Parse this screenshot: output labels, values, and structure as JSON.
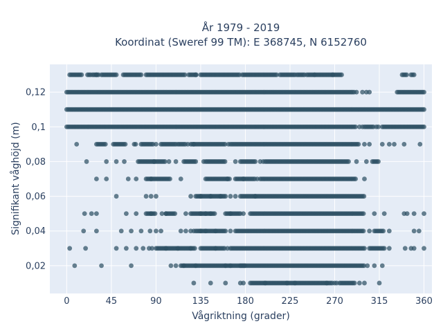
{
  "chart_data": {
    "type": "scatter",
    "title": "År 1979 - 2019",
    "subtitle": "Koordinat (Sweref 99 TM): E 368745, N 6152760",
    "xlabel": "Vågriktning (grader)",
    "ylabel": "Signifikant våghöjd (m)",
    "xlim": [
      -17,
      368
    ],
    "ylim": [
      0.004,
      0.136
    ],
    "x_ticks": [
      0,
      45,
      90,
      135,
      180,
      225,
      270,
      315,
      360
    ],
    "x_tick_labels": [
      "0",
      "45",
      "90",
      "135",
      "180",
      "225",
      "270",
      "315",
      "360"
    ],
    "y_ticks": [
      0.02,
      0.04,
      0.06,
      0.08,
      0.1,
      0.12
    ],
    "y_tick_labels": [
      "0,02",
      "0,04",
      "0,06",
      "0,08",
      "0,1",
      "0,12"
    ],
    "grid": true,
    "legend": false,
    "marker_color": "#2e5064",
    "plot_background": "#e5ecf6",
    "note": "Points lie on discrete height levels (0.01 m steps); each row lists [start, end] direction spans (degrees) of contiguous points and isolated single points.",
    "rows": [
      {
        "y": 0.13,
        "spans": [
          [
            3,
            15
          ],
          [
            21,
            24
          ],
          [
            26,
            33
          ],
          [
            35,
            51
          ],
          [
            57,
            75
          ],
          [
            80,
            120
          ],
          [
            123,
            131
          ],
          [
            135,
            175
          ],
          [
            177,
            212
          ],
          [
            215,
            230
          ],
          [
            232,
            240
          ],
          [
            242,
            250
          ],
          [
            250,
            278
          ],
          [
            338,
            343
          ],
          [
            347,
            350
          ]
        ],
        "points": [
          30,
          130,
          268
        ]
      },
      {
        "y": 0.12,
        "spans": [
          [
            0,
            290
          ],
          [
            333,
            360
          ]
        ],
        "points": [
          292,
          298,
          302,
          305
        ]
      },
      {
        "y": 0.11,
        "spans": [
          [
            0,
            360
          ]
        ],
        "points": []
      },
      {
        "y": 0.1,
        "spans": [
          [
            0,
            292
          ],
          [
            300,
            310
          ],
          [
            318,
            360
          ]
        ],
        "points": [
          295,
          298,
          312,
          314
        ]
      },
      {
        "y": 0.09,
        "spans": [
          [
            30,
            40
          ],
          [
            47,
            60
          ],
          [
            68,
            70
          ],
          [
            75,
            88
          ],
          [
            95,
            110
          ],
          [
            112,
            120
          ],
          [
            125,
            160
          ],
          [
            165,
            295
          ]
        ],
        "points": [
          10,
          90,
          122,
          128,
          163,
          300,
          305,
          318,
          325,
          330,
          340,
          356
        ]
      },
      {
        "y": 0.08,
        "spans": [
          [
            72,
            100
          ],
          [
            118,
            130
          ],
          [
            140,
            160
          ],
          [
            175,
            190
          ],
          [
            200,
            285
          ],
          [
            308,
            315
          ]
        ],
        "points": [
          20,
          40,
          50,
          58,
          88,
          103,
          110,
          138,
          170,
          195,
          198,
          292,
          302
        ]
      },
      {
        "y": 0.07,
        "spans": [
          [
            80,
            105
          ],
          [
            140,
            165
          ],
          [
            170,
            190
          ],
          [
            195,
            292
          ]
        ],
        "points": [
          30,
          40,
          62,
          70,
          85,
          115,
          162,
          178,
          192,
          300
        ]
      },
      {
        "y": 0.06,
        "spans": [
          [
            130,
            160
          ],
          [
            175,
            300
          ]
        ],
        "points": [
          50,
          80,
          85,
          90,
          125,
          135,
          145,
          155,
          165,
          170,
          190
        ]
      },
      {
        "y": 0.05,
        "spans": [
          [
            80,
            90
          ],
          [
            100,
            110
          ],
          [
            125,
            150
          ],
          [
            160,
            175
          ],
          [
            185,
            300
          ]
        ],
        "points": [
          18,
          25,
          30,
          60,
          70,
          85,
          96,
          100,
          120,
          135,
          140,
          145,
          165,
          178,
          310,
          320,
          340,
          343,
          350,
          360
        ]
      },
      {
        "y": 0.04,
        "spans": [
          [
            130,
            160
          ],
          [
            170,
            300
          ],
          [
            310,
            320
          ]
        ],
        "points": [
          17,
          30,
          55,
          65,
          75,
          84,
          90,
          95,
          115,
          120,
          125,
          128,
          135,
          140,
          150,
          165,
          305,
          325,
          350,
          355
        ]
      },
      {
        "y": 0.03,
        "spans": [
          [
            90,
            130
          ],
          [
            135,
            160
          ],
          [
            165,
            300
          ],
          [
            305,
            320
          ]
        ],
        "points": [
          3,
          19,
          50,
          60,
          70,
          77,
          83,
          86,
          100,
          112,
          125,
          150,
          162,
          325,
          341,
          347,
          350,
          360
        ]
      },
      {
        "y": 0.02,
        "spans": [
          [
            115,
            180
          ],
          [
            175,
            300
          ]
        ],
        "points": [
          8,
          35,
          65,
          105,
          110,
          118,
          130,
          160,
          165,
          303,
          310,
          318
        ]
      },
      {
        "y": 0.01,
        "spans": [
          [
            185,
            230
          ],
          [
            230,
            268
          ],
          [
            275,
            290
          ]
        ],
        "points": [
          128,
          145,
          160,
          175,
          178,
          200,
          222,
          262,
          270,
          272,
          295,
          300,
          315
        ]
      }
    ]
  }
}
